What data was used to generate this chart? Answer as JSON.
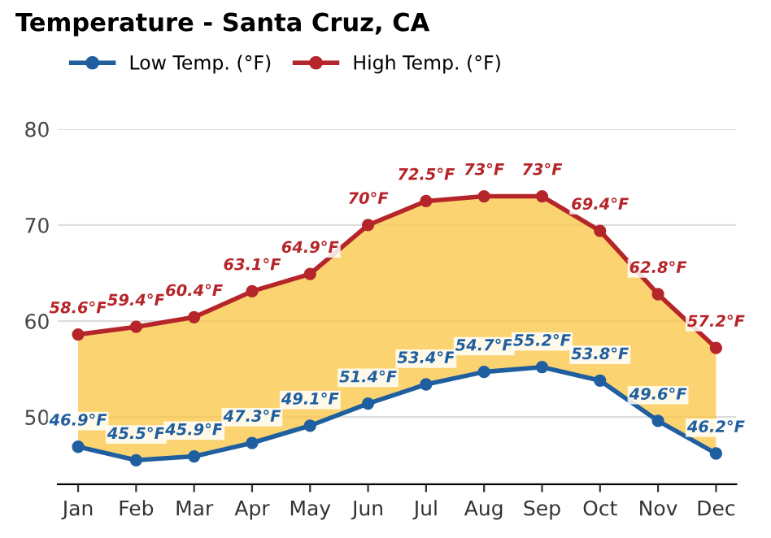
{
  "chart_data": {
    "type": "line",
    "title": "Temperature - Santa Cruz, CA",
    "categories": [
      "Jan",
      "Feb",
      "Mar",
      "Apr",
      "May",
      "Jun",
      "Jul",
      "Aug",
      "Sep",
      "Oct",
      "Nov",
      "Dec"
    ],
    "series": [
      {
        "name": "Low Temp. (°F)",
        "color": "#1f5fa0",
        "values": [
          46.9,
          45.5,
          45.9,
          47.3,
          49.1,
          51.4,
          53.4,
          54.7,
          55.2,
          53.8,
          49.6,
          46.2
        ],
        "value_labels": [
          "46.9°F",
          "45.5°F",
          "45.9°F",
          "47.3°F",
          "49.1°F",
          "51.4°F",
          "53.4°F",
          "54.7°F",
          "55.2°F",
          "53.8°F",
          "49.6°F",
          "46.2°F"
        ]
      },
      {
        "name": "High Temp. (°F)",
        "color": "#b5252a",
        "values": [
          58.6,
          59.4,
          60.4,
          63.1,
          64.9,
          70,
          72.5,
          73,
          73,
          69.4,
          62.8,
          57.2
        ],
        "value_labels": [
          "58.6°F",
          "59.4°F",
          "60.4°F",
          "63.1°F",
          "64.9°F",
          "70°F",
          "72.5°F",
          "73°F",
          "73°F",
          "69.4°F",
          "62.8°F",
          "57.2°F"
        ]
      }
    ],
    "ylim": [
      43,
      80
    ],
    "yticks": [
      50,
      60,
      70,
      80
    ],
    "grid": "y",
    "legend": "top left",
    "marker": "circle",
    "line_style": "solid"
  }
}
